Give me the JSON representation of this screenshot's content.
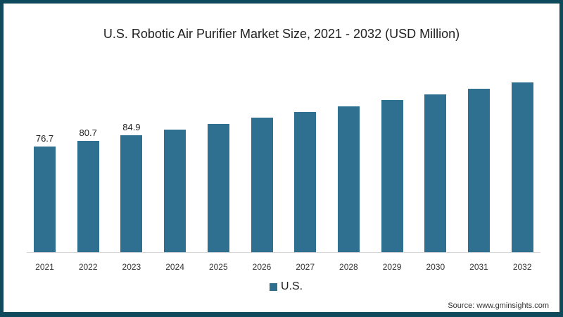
{
  "colors": {
    "bar": "#2f6f8f",
    "frame": "#0e4a5c"
  },
  "chart_data": {
    "type": "bar",
    "title": "U.S. Robotic Air Purifier Market Size, 2021 - 2032 (USD Million)",
    "categories": [
      "2021",
      "2022",
      "2023",
      "2024",
      "2025",
      "2026",
      "2027",
      "2028",
      "2029",
      "2030",
      "2031",
      "2032"
    ],
    "series": [
      {
        "name": "U.S.",
        "values": [
          76.7,
          80.7,
          84.9,
          89.0,
          93.1,
          97.7,
          101.8,
          105.9,
          110.5,
          114.6,
          118.7,
          123.3
        ]
      }
    ],
    "data_labels": [
      "76.7",
      "80.7",
      "84.9"
    ],
    "xlabel": "",
    "ylabel": "",
    "grid": false,
    "legend_position": "bottom"
  },
  "legend": {
    "label": "U.S."
  },
  "source": "Source: www.gminsights.com"
}
